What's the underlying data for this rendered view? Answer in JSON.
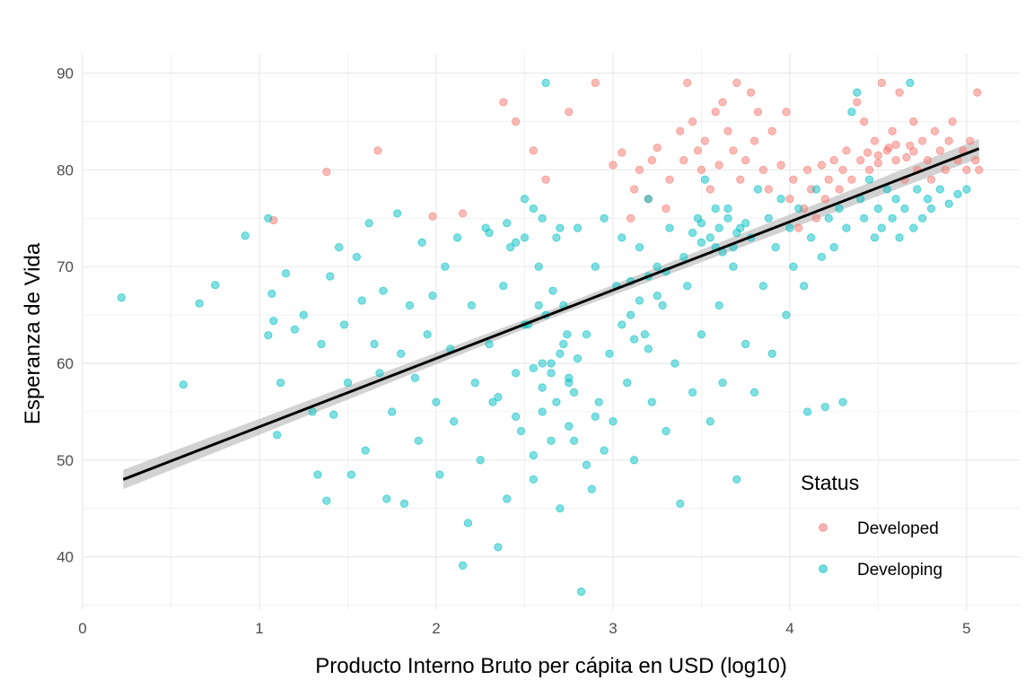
{
  "chart_data": {
    "type": "scatter",
    "title": "",
    "xlabel": "Producto Interno Bruto per cápita en USD (log10)",
    "ylabel": "Esperanza de Vida",
    "xlim": [
      0,
      5.3
    ],
    "ylim": [
      34.5,
      92
    ],
    "x_ticks": [
      "0",
      "1",
      "2",
      "3",
      "4",
      "5"
    ],
    "y_ticks": [
      "40",
      "50",
      "60",
      "70",
      "80",
      "90"
    ],
    "grid": true,
    "legend": {
      "title": "Status",
      "position": "bottom-right"
    },
    "colors": {
      "Developed": "#F8766D",
      "Developing": "#00BFC4",
      "trend": "#000000",
      "band": "#bfbfbf"
    },
    "trend_line": {
      "type": "linear",
      "x": [
        0.23,
        5.07
      ],
      "y": [
        48.0,
        82.2
      ],
      "confidence_band": true
    },
    "series": [
      {
        "name": "Developed",
        "points": [
          [
            1.38,
            79.8
          ],
          [
            1.08,
            74.8
          ],
          [
            1.67,
            82.0
          ],
          [
            1.98,
            75.2
          ],
          [
            2.15,
            75.5
          ],
          [
            2.38,
            87.0
          ],
          [
            2.45,
            85.0
          ],
          [
            2.55,
            82.0
          ],
          [
            2.62,
            79.0
          ],
          [
            2.75,
            86.0
          ],
          [
            2.9,
            89.0
          ],
          [
            3.0,
            80.5
          ],
          [
            3.05,
            81.8
          ],
          [
            3.1,
            75.0
          ],
          [
            3.12,
            78.0
          ],
          [
            3.15,
            80.0
          ],
          [
            3.2,
            77.0
          ],
          [
            3.22,
            81.0
          ],
          [
            3.25,
            82.3
          ],
          [
            3.3,
            76.0
          ],
          [
            3.32,
            79.0
          ],
          [
            3.38,
            84.0
          ],
          [
            3.4,
            81.0
          ],
          [
            3.42,
            89.0
          ],
          [
            3.45,
            85.0
          ],
          [
            3.48,
            82.0
          ],
          [
            3.5,
            80.0
          ],
          [
            3.52,
            83.0
          ],
          [
            3.55,
            78.0
          ],
          [
            3.58,
            86.0
          ],
          [
            3.6,
            80.5
          ],
          [
            3.62,
            87.0
          ],
          [
            3.65,
            84.0
          ],
          [
            3.68,
            82.0
          ],
          [
            3.7,
            89.0
          ],
          [
            3.72,
            79.0
          ],
          [
            3.75,
            81.0
          ],
          [
            3.78,
            88.0
          ],
          [
            3.8,
            83.0
          ],
          [
            3.82,
            86.0
          ],
          [
            3.85,
            80.0
          ],
          [
            3.88,
            78.0
          ],
          [
            3.9,
            84.0
          ],
          [
            3.95,
            80.5
          ],
          [
            3.98,
            86.0
          ],
          [
            4.0,
            77.0
          ],
          [
            4.02,
            79.0
          ],
          [
            4.05,
            74.0
          ],
          [
            4.08,
            76.0
          ],
          [
            4.1,
            80.0
          ],
          [
            4.12,
            78.0
          ],
          [
            4.15,
            75.0
          ],
          [
            4.18,
            80.5
          ],
          [
            4.2,
            77.0
          ],
          [
            4.22,
            79.0
          ],
          [
            4.25,
            81.0
          ],
          [
            4.28,
            78.0
          ],
          [
            4.3,
            80.0
          ],
          [
            4.32,
            82.0
          ],
          [
            4.35,
            79.0
          ],
          [
            4.38,
            87.0
          ],
          [
            4.4,
            81.0
          ],
          [
            4.42,
            85.0
          ],
          [
            4.45,
            80.0
          ],
          [
            4.48,
            83.0
          ],
          [
            4.5,
            81.5
          ],
          [
            4.52,
            89.0
          ],
          [
            4.55,
            82.0
          ],
          [
            4.58,
            84.0
          ],
          [
            4.6,
            81.0
          ],
          [
            4.62,
            88.0
          ],
          [
            4.65,
            79.0
          ],
          [
            4.68,
            82.5
          ],
          [
            4.7,
            85.0
          ],
          [
            4.72,
            80.0
          ],
          [
            4.75,
            83.0
          ],
          [
            4.78,
            81.0
          ],
          [
            4.8,
            79.0
          ],
          [
            4.82,
            84.0
          ],
          [
            4.85,
            82.0
          ],
          [
            4.88,
            80.0
          ],
          [
            4.9,
            83.0
          ],
          [
            4.92,
            85.0
          ],
          [
            4.95,
            81.0
          ],
          [
            4.98,
            82.0
          ],
          [
            5.0,
            80.0
          ],
          [
            5.02,
            83.0
          ],
          [
            5.05,
            81.0
          ],
          [
            5.06,
            88.0
          ],
          [
            5.07,
            80.0
          ],
          [
            4.44,
            81.8
          ],
          [
            4.56,
            82.3
          ],
          [
            4.6,
            82.6
          ],
          [
            4.66,
            81.3
          ],
          [
            4.5,
            80.7
          ],
          [
            4.7,
            81.9
          ]
        ]
      },
      {
        "name": "Developing",
        "points": [
          [
            0.22,
            66.8
          ],
          [
            0.57,
            57.8
          ],
          [
            0.66,
            66.2
          ],
          [
            0.75,
            68.1
          ],
          [
            0.92,
            73.2
          ],
          [
            1.05,
            75.0
          ],
          [
            1.05,
            62.9
          ],
          [
            1.07,
            67.2
          ],
          [
            1.08,
            64.4
          ],
          [
            1.1,
            52.6
          ],
          [
            1.12,
            58.0
          ],
          [
            1.15,
            69.3
          ],
          [
            1.2,
            63.5
          ],
          [
            1.25,
            65.0
          ],
          [
            1.3,
            55.0
          ],
          [
            1.33,
            48.5
          ],
          [
            1.35,
            62.0
          ],
          [
            1.38,
            45.8
          ],
          [
            1.4,
            69.0
          ],
          [
            1.42,
            54.7
          ],
          [
            1.45,
            72.0
          ],
          [
            1.48,
            64.0
          ],
          [
            1.5,
            58.0
          ],
          [
            1.52,
            48.5
          ],
          [
            1.55,
            71.0
          ],
          [
            1.58,
            66.5
          ],
          [
            1.6,
            51.0
          ],
          [
            1.62,
            74.5
          ],
          [
            1.65,
            62.0
          ],
          [
            1.68,
            59.0
          ],
          [
            1.7,
            67.5
          ],
          [
            1.72,
            46.0
          ],
          [
            1.75,
            55.0
          ],
          [
            1.78,
            75.5
          ],
          [
            1.8,
            61.0
          ],
          [
            1.82,
            45.5
          ],
          [
            1.85,
            66.0
          ],
          [
            1.88,
            58.5
          ],
          [
            1.9,
            52.0
          ],
          [
            1.92,
            72.5
          ],
          [
            1.95,
            63.0
          ],
          [
            1.98,
            67.0
          ],
          [
            2.0,
            56.0
          ],
          [
            2.02,
            48.5
          ],
          [
            2.05,
            70.0
          ],
          [
            2.08,
            61.5
          ],
          [
            2.1,
            54.0
          ],
          [
            2.12,
            73.0
          ],
          [
            2.15,
            39.1
          ],
          [
            2.18,
            43.5
          ],
          [
            2.2,
            66.0
          ],
          [
            2.22,
            58.0
          ],
          [
            2.25,
            50.0
          ],
          [
            2.28,
            74.0
          ],
          [
            2.3,
            62.0
          ],
          [
            2.32,
            56.0
          ],
          [
            2.35,
            41.0
          ],
          [
            2.38,
            68.0
          ],
          [
            2.4,
            46.0
          ],
          [
            2.42,
            72.0
          ],
          [
            2.45,
            59.0
          ],
          [
            2.48,
            53.0
          ],
          [
            2.5,
            77.0
          ],
          [
            2.52,
            64.0
          ],
          [
            2.55,
            48.0
          ],
          [
            2.58,
            70.0
          ],
          [
            2.6,
            55.0
          ],
          [
            2.62,
            89.0
          ],
          [
            2.65,
            60.0
          ],
          [
            2.68,
            73.0
          ],
          [
            2.7,
            45.0
          ],
          [
            2.72,
            66.0
          ],
          [
            2.75,
            58.0
          ],
          [
            2.78,
            52.0
          ],
          [
            2.8,
            74.0
          ],
          [
            2.82,
            36.4
          ],
          [
            2.85,
            63.0
          ],
          [
            2.88,
            47.0
          ],
          [
            2.9,
            70.0
          ],
          [
            2.92,
            56.0
          ],
          [
            2.95,
            75.0
          ],
          [
            2.98,
            61.0
          ],
          [
            3.0,
            54.0
          ],
          [
            3.02,
            68.0
          ],
          [
            3.05,
            73.0
          ],
          [
            3.08,
            58.0
          ],
          [
            3.1,
            65.0
          ],
          [
            3.12,
            50.0
          ],
          [
            3.15,
            72.0
          ],
          [
            3.18,
            63.0
          ],
          [
            3.2,
            77.0
          ],
          [
            3.22,
            56.0
          ],
          [
            3.25,
            70.0
          ],
          [
            3.28,
            66.0
          ],
          [
            3.3,
            53.0
          ],
          [
            3.32,
            74.0
          ],
          [
            3.35,
            60.0
          ],
          [
            3.38,
            45.5
          ],
          [
            3.4,
            71.0
          ],
          [
            3.42,
            68.0
          ],
          [
            3.45,
            57.0
          ],
          [
            3.48,
            75.0
          ],
          [
            3.5,
            63.0
          ],
          [
            3.52,
            79.0
          ],
          [
            3.55,
            54.0
          ],
          [
            3.58,
            72.0
          ],
          [
            3.6,
            66.0
          ],
          [
            3.62,
            58.0
          ],
          [
            3.65,
            76.0
          ],
          [
            3.68,
            70.0
          ],
          [
            3.7,
            48.0
          ],
          [
            3.72,
            74.0
          ],
          [
            3.75,
            62.0
          ],
          [
            3.78,
            73.0
          ],
          [
            3.8,
            57.0
          ],
          [
            3.82,
            78.0
          ],
          [
            3.85,
            68.0
          ],
          [
            3.88,
            75.0
          ],
          [
            3.9,
            61.0
          ],
          [
            3.92,
            72.0
          ],
          [
            3.95,
            77.0
          ],
          [
            3.98,
            65.0
          ],
          [
            4.0,
            74.0
          ],
          [
            4.02,
            70.0
          ],
          [
            4.05,
            76.0
          ],
          [
            4.08,
            68.0
          ],
          [
            4.1,
            55.0
          ],
          [
            4.12,
            73.0
          ],
          [
            4.15,
            78.0
          ],
          [
            4.18,
            71.0
          ],
          [
            4.2,
            55.5
          ],
          [
            4.22,
            75.0
          ],
          [
            4.25,
            72.0
          ],
          [
            4.28,
            76.0
          ],
          [
            4.3,
            56.0
          ],
          [
            4.32,
            74.0
          ],
          [
            4.35,
            86.0
          ],
          [
            4.38,
            88.0
          ],
          [
            4.4,
            77.0
          ],
          [
            4.42,
            75.0
          ],
          [
            4.45,
            79.0
          ],
          [
            4.48,
            73.0
          ],
          [
            4.5,
            76.0
          ],
          [
            4.52,
            74.0
          ],
          [
            4.55,
            78.0
          ],
          [
            4.58,
            75.0
          ],
          [
            4.6,
            77.0
          ],
          [
            4.62,
            73.0
          ],
          [
            4.65,
            76.0
          ],
          [
            4.68,
            89.0
          ],
          [
            4.7,
            74.0
          ],
          [
            4.72,
            78.0
          ],
          [
            4.75,
            75.0
          ],
          [
            4.78,
            77.0
          ],
          [
            4.8,
            76.0
          ],
          [
            4.85,
            78.0
          ],
          [
            4.9,
            76.5
          ],
          [
            4.95,
            77.5
          ],
          [
            5.0,
            78.0
          ],
          [
            2.6,
            60.0
          ],
          [
            2.65,
            59.0
          ],
          [
            2.7,
            61.0
          ],
          [
            2.75,
            58.5
          ],
          [
            2.8,
            60.5
          ],
          [
            2.6,
            57.5
          ],
          [
            2.72,
            62.0
          ],
          [
            2.55,
            59.5
          ],
          [
            2.68,
            56.0
          ],
          [
            2.78,
            57.0
          ],
          [
            2.5,
            64.0
          ],
          [
            2.62,
            65.0
          ],
          [
            2.74,
            63.0
          ],
          [
            2.58,
            66.0
          ],
          [
            2.66,
            67.5
          ],
          [
            2.3,
            73.5
          ],
          [
            2.4,
            74.5
          ],
          [
            2.5,
            73.0
          ],
          [
            2.6,
            75.0
          ],
          [
            2.7,
            74.0
          ],
          [
            2.45,
            72.5
          ],
          [
            2.55,
            76.0
          ],
          [
            3.45,
            73.5
          ],
          [
            3.5,
            74.5
          ],
          [
            3.55,
            73.0
          ],
          [
            3.6,
            74.0
          ],
          [
            3.65,
            75.0
          ],
          [
            3.7,
            73.5
          ],
          [
            3.75,
            74.5
          ],
          [
            3.5,
            72.5
          ],
          [
            3.58,
            76.0
          ],
          [
            3.62,
            71.5
          ],
          [
            3.68,
            72.0
          ],
          [
            3.1,
            68.5
          ],
          [
            3.2,
            69.0
          ],
          [
            3.3,
            69.5
          ],
          [
            3.15,
            66.5
          ],
          [
            3.25,
            67.0
          ],
          [
            3.05,
            64.0
          ],
          [
            3.12,
            62.5
          ],
          [
            3.2,
            61.5
          ],
          [
            2.9,
            54.5
          ],
          [
            2.95,
            51.0
          ],
          [
            2.85,
            49.5
          ],
          [
            2.75,
            53.5
          ],
          [
            2.65,
            52.0
          ],
          [
            2.55,
            50.5
          ],
          [
            2.45,
            54.5
          ],
          [
            2.35,
            56.5
          ]
        ]
      }
    ]
  }
}
